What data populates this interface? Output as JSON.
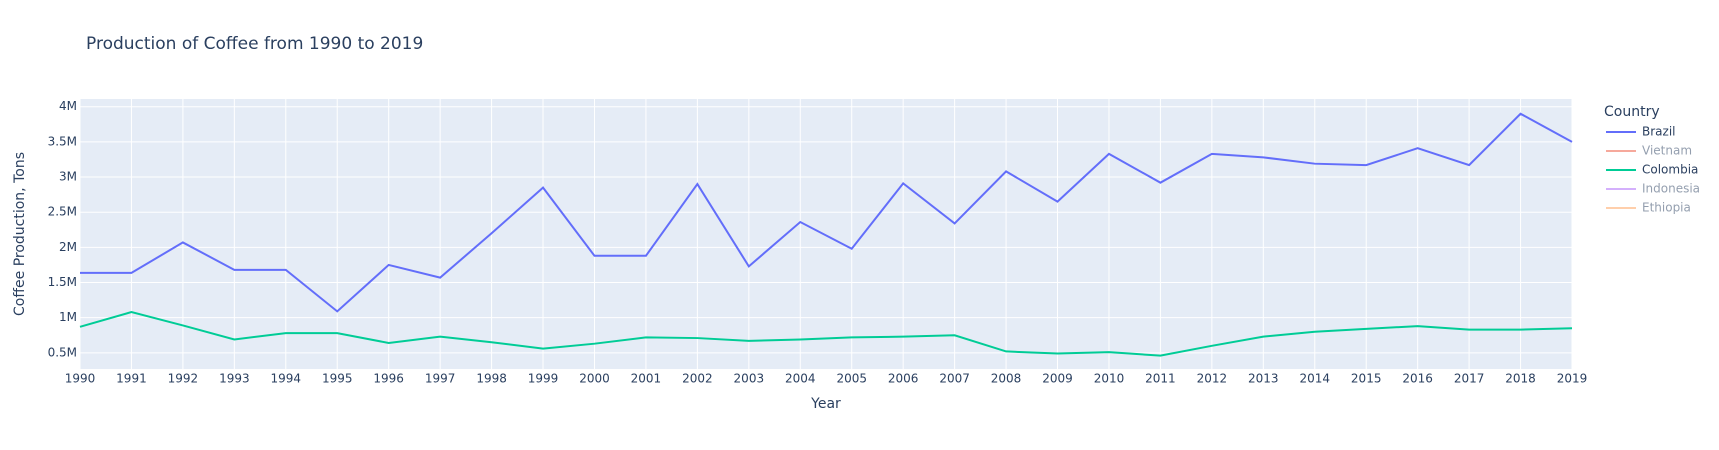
{
  "chart_data": {
    "type": "line",
    "title": "Production of Coffee from 1990 to 2019",
    "xlabel": "Year",
    "ylabel": "Coffee Production, Tons",
    "legend_title": "Country",
    "legend": "right",
    "grid": true,
    "x": [
      1990,
      1991,
      1992,
      1993,
      1994,
      1995,
      1996,
      1997,
      1998,
      1999,
      2000,
      2001,
      2002,
      2003,
      2004,
      2005,
      2006,
      2007,
      2008,
      2009,
      2010,
      2011,
      2012,
      2013,
      2014,
      2015,
      2016,
      2017,
      2018,
      2019
    ],
    "xlim": [
      1990,
      2019
    ],
    "xticks": [
      1990,
      1991,
      1992,
      1993,
      1994,
      1995,
      1996,
      1997,
      1998,
      1999,
      2000,
      2001,
      2002,
      2003,
      2004,
      2005,
      2006,
      2007,
      2008,
      2009,
      2010,
      2011,
      2012,
      2013,
      2014,
      2015,
      2016,
      2017,
      2018,
      2019
    ],
    "ylim": [
      270000,
      4110000
    ],
    "yticks": [
      {
        "value": 500000,
        "label": "0.5M"
      },
      {
        "value": 1000000,
        "label": "1M"
      },
      {
        "value": 1500000,
        "label": "1.5M"
      },
      {
        "value": 2000000,
        "label": "2M"
      },
      {
        "value": 2500000,
        "label": "2.5M"
      },
      {
        "value": 3000000,
        "label": "3M"
      },
      {
        "value": 3500000,
        "label": "3.5M"
      },
      {
        "value": 4000000,
        "label": "4M"
      }
    ],
    "series": [
      {
        "name": "Brazil",
        "color": "#636efa",
        "values": [
          1637000,
          1637000,
          2070000,
          1680000,
          1680000,
          1090000,
          1750000,
          1570000,
          2200000,
          2850000,
          1880000,
          1880000,
          2900000,
          1730000,
          2360000,
          1980000,
          2910000,
          2340000,
          3080000,
          2650000,
          3330000,
          2920000,
          3330000,
          3280000,
          3190000,
          3170000,
          3410000,
          3170000,
          3900000,
          3500000
        ]
      },
      {
        "name": "Vietnam",
        "color": "#EF553B",
        "hidden": true
      },
      {
        "name": "Colombia",
        "color": "#00cc96",
        "values": [
          870000,
          1080000,
          890000,
          690000,
          780000,
          780000,
          640000,
          730000,
          650000,
          560000,
          630000,
          720000,
          710000,
          670000,
          690000,
          720000,
          730000,
          750000,
          520000,
          490000,
          510000,
          460000,
          600000,
          730000,
          800000,
          840000,
          880000,
          830000,
          830000,
          850000
        ]
      },
      {
        "name": "Indonesia",
        "color": "#AB63FA",
        "hidden": true
      },
      {
        "name": "Ethiopia",
        "color": "#FFA15A",
        "hidden": true
      }
    ]
  }
}
